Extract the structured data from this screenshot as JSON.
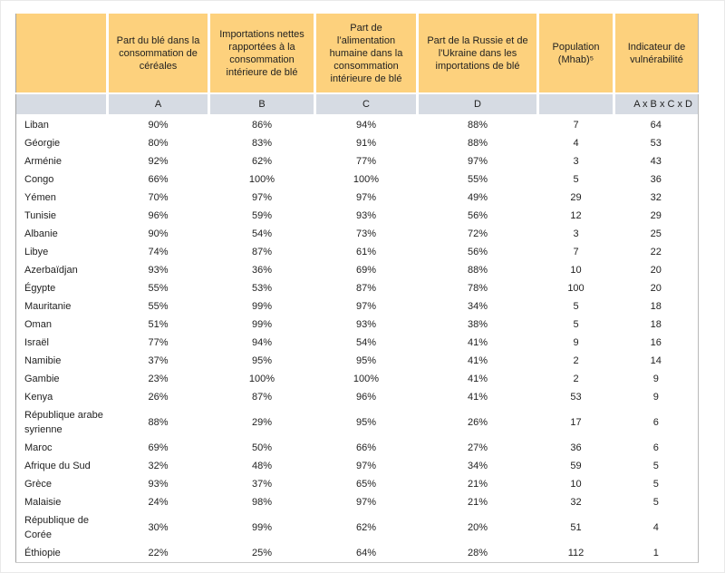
{
  "colors": {
    "header_bg": "#fdd17d",
    "subheader_bg": "#d6dbe3",
    "text": "#1f1f1f",
    "table_border": "#a3a3a3"
  },
  "table": {
    "columns": [
      {
        "key": "country",
        "header": "",
        "sub": ""
      },
      {
        "key": "a",
        "header": "Part du blé dans la consommation de céréales",
        "sub": "A"
      },
      {
        "key": "b",
        "header": "Importations nettes rapportées à la consommation intérieure de blé",
        "sub": "B"
      },
      {
        "key": "c",
        "header": "Part de l’alimentation humaine dans la consommation intérieure de blé",
        "sub": "C"
      },
      {
        "key": "d",
        "header": "Part de la Russie et de l'Ukraine dans les importations de blé",
        "sub": "D"
      },
      {
        "key": "pop",
        "header": "Population (Mhab)⁵",
        "sub": ""
      },
      {
        "key": "ind",
        "header": "Indicateur de vulnérabilité",
        "sub": "A x B x C x D"
      }
    ],
    "rows": [
      {
        "country": "Liban",
        "a": "90%",
        "b": "86%",
        "c": "94%",
        "d": "88%",
        "pop": "7",
        "ind": "64"
      },
      {
        "country": "Géorgie",
        "a": "80%",
        "b": "83%",
        "c": "91%",
        "d": "88%",
        "pop": "4",
        "ind": "53"
      },
      {
        "country": "Arménie",
        "a": "92%",
        "b": "62%",
        "c": "77%",
        "d": "97%",
        "pop": "3",
        "ind": "43"
      },
      {
        "country": "Congo",
        "a": "66%",
        "b": "100%",
        "c": "100%",
        "d": "55%",
        "pop": "5",
        "ind": "36"
      },
      {
        "country": "Yémen",
        "a": "70%",
        "b": "97%",
        "c": "97%",
        "d": "49%",
        "pop": "29",
        "ind": "32"
      },
      {
        "country": "Tunisie",
        "a": "96%",
        "b": "59%",
        "c": "93%",
        "d": "56%",
        "pop": "12",
        "ind": "29"
      },
      {
        "country": "Albanie",
        "a": "90%",
        "b": "54%",
        "c": "73%",
        "d": "72%",
        "pop": "3",
        "ind": "25"
      },
      {
        "country": "Libye",
        "a": "74%",
        "b": "87%",
        "c": "61%",
        "d": "56%",
        "pop": "7",
        "ind": "22"
      },
      {
        "country": "Azerbaïdjan",
        "a": "93%",
        "b": "36%",
        "c": "69%",
        "d": "88%",
        "pop": "10",
        "ind": "20"
      },
      {
        "country": "Égypte",
        "a": "55%",
        "b": "53%",
        "c": "87%",
        "d": "78%",
        "pop": "100",
        "ind": "20"
      },
      {
        "country": "Mauritanie",
        "a": "55%",
        "b": "99%",
        "c": "97%",
        "d": "34%",
        "pop": "5",
        "ind": "18"
      },
      {
        "country": "Oman",
        "a": "51%",
        "b": "99%",
        "c": "93%",
        "d": "38%",
        "pop": "5",
        "ind": "18"
      },
      {
        "country": "Israël",
        "a": "77%",
        "b": "94%",
        "c": "54%",
        "d": "41%",
        "pop": "9",
        "ind": "16"
      },
      {
        "country": "Namibie",
        "a": "37%",
        "b": "95%",
        "c": "95%",
        "d": "41%",
        "pop": "2",
        "ind": "14"
      },
      {
        "country": "Gambie",
        "a": "23%",
        "b": "100%",
        "c": "100%",
        "d": "41%",
        "pop": "2",
        "ind": "9"
      },
      {
        "country": "Kenya",
        "a": "26%",
        "b": "87%",
        "c": "96%",
        "d": "41%",
        "pop": "53",
        "ind": "9"
      },
      {
        "country": "République arabe syrienne",
        "a": "88%",
        "b": "29%",
        "c": "95%",
        "d": "26%",
        "pop": "17",
        "ind": "6"
      },
      {
        "country": "Maroc",
        "a": "69%",
        "b": "50%",
        "c": "66%",
        "d": "27%",
        "pop": "36",
        "ind": "6"
      },
      {
        "country": "Afrique du Sud",
        "a": "32%",
        "b": "48%",
        "c": "97%",
        "d": "34%",
        "pop": "59",
        "ind": "5"
      },
      {
        "country": "Grèce",
        "a": "93%",
        "b": "37%",
        "c": "65%",
        "d": "21%",
        "pop": "10",
        "ind": "5"
      },
      {
        "country": "Malaisie",
        "a": "24%",
        "b": "98%",
        "c": "97%",
        "d": "21%",
        "pop": "32",
        "ind": "5"
      },
      {
        "country": "République de Corée",
        "a": "30%",
        "b": "99%",
        "c": "62%",
        "d": "20%",
        "pop": "51",
        "ind": "4"
      },
      {
        "country": "Éthiopie",
        "a": "22%",
        "b": "25%",
        "c": "64%",
        "d": "28%",
        "pop": "112",
        "ind": "1"
      }
    ]
  }
}
